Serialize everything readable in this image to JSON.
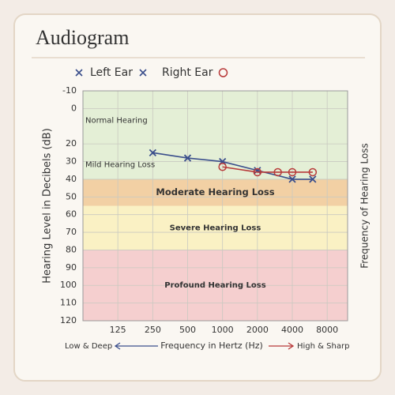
{
  "chart_data": {
    "type": "audiogram",
    "title": "Audiogram",
    "x_label": "Frequency in Hertz (Hz)",
    "y_label": "Hearing Level in Decibels (dB)",
    "y2_label": "Frequency of Hearing Loss",
    "low_label": "Low & Deep",
    "high_label": "High & Sharp",
    "xscale": "log",
    "xlim": [
      62.5,
      12000
    ],
    "xticks": [
      125,
      250,
      500,
      1000,
      2000,
      4000,
      8000
    ],
    "ylim": [
      -10,
      120
    ],
    "yticks": [
      -10,
      0,
      20,
      30,
      40,
      50,
      60,
      70,
      80,
      90,
      100,
      110,
      120
    ],
    "y_inverted": true,
    "grid": true,
    "bands": [
      {
        "name": "Normal Hearing",
        "range": [
          -10,
          20
        ],
        "color": "#e4efd6"
      },
      {
        "name": "Mild Hearing Loss",
        "range": [
          20,
          40
        ],
        "color": "#e4efd6"
      },
      {
        "name": "Moderate Hearing Loss",
        "range": [
          40,
          55
        ],
        "color": "#f2d0a4"
      },
      {
        "name": "Severe Hearing Loss",
        "range": [
          55,
          80
        ],
        "color": "#faf1c4"
      },
      {
        "name": "Profound Hearing Loss",
        "range": [
          80,
          120
        ],
        "color": "#f5cfcf"
      }
    ],
    "series": [
      {
        "name": "Left Ear",
        "color": "#3b4f8c",
        "marker": "x",
        "x": [
          250,
          500,
          1000,
          2000,
          4000,
          6000
        ],
        "values": [
          25,
          28,
          30,
          35,
          40,
          40
        ]
      },
      {
        "name": "Right Ear",
        "color": "#b83a3a",
        "marker": "o",
        "x": [
          1000,
          2000,
          3000,
          4000,
          6000
        ],
        "values": [
          33,
          36,
          36,
          36,
          36
        ]
      }
    ]
  }
}
